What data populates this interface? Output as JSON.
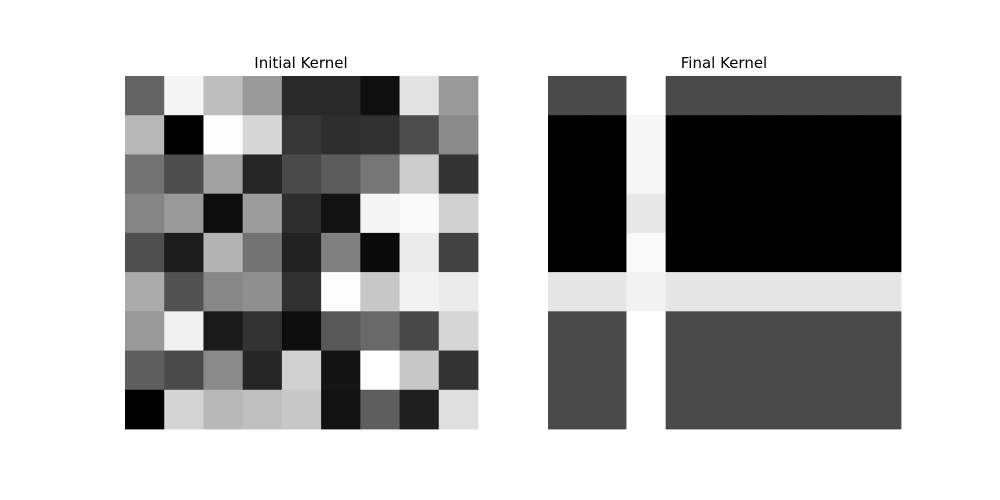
{
  "chart_data": [
    {
      "type": "heatmap",
      "title": "Initial Kernel",
      "colormap": "gray",
      "grid": false,
      "axes_visible": false,
      "rows": 9,
      "cols": 9,
      "values": [
        [
          0.39,
          0.96,
          0.74,
          0.6,
          0.16,
          0.16,
          0.06,
          0.89,
          0.6
        ],
        [
          0.72,
          0.0,
          0.99,
          0.84,
          0.21,
          0.18,
          0.19,
          0.3,
          0.54
        ],
        [
          0.45,
          0.3,
          0.63,
          0.15,
          0.29,
          0.36,
          0.46,
          0.8,
          0.2
        ],
        [
          0.52,
          0.6,
          0.05,
          0.61,
          0.18,
          0.07,
          0.96,
          0.98,
          0.82
        ],
        [
          0.31,
          0.11,
          0.7,
          0.45,
          0.13,
          0.5,
          0.04,
          0.92,
          0.26
        ],
        [
          0.67,
          0.32,
          0.53,
          0.56,
          0.19,
          0.99,
          0.78,
          0.95,
          0.92
        ],
        [
          0.6,
          0.94,
          0.1,
          0.2,
          0.05,
          0.34,
          0.41,
          0.28,
          0.84
        ],
        [
          0.37,
          0.29,
          0.54,
          0.15,
          0.82,
          0.08,
          1.0,
          0.78,
          0.2
        ],
        [
          0.0,
          0.83,
          0.72,
          0.75,
          0.78,
          0.07,
          0.37,
          0.12,
          0.87
        ]
      ]
    },
    {
      "type": "heatmap",
      "title": "Final Kernel",
      "colormap": "gray",
      "grid": false,
      "axes_visible": false,
      "rows": 9,
      "cols": 9,
      "values": [
        [
          0.29,
          0.29,
          1.0,
          0.29,
          0.29,
          0.29,
          0.29,
          0.29,
          0.29
        ],
        [
          0.0,
          0.0,
          0.97,
          0.0,
          0.0,
          0.0,
          0.0,
          0.0,
          0.0
        ],
        [
          0.0,
          0.0,
          0.97,
          0.0,
          0.0,
          0.0,
          0.0,
          0.0,
          0.0
        ],
        [
          0.0,
          0.0,
          0.91,
          0.0,
          0.0,
          0.0,
          0.0,
          0.0,
          0.0
        ],
        [
          0.0,
          0.0,
          0.98,
          0.0,
          0.0,
          0.0,
          0.0,
          0.0,
          0.0
        ],
        [
          0.9,
          0.9,
          0.95,
          0.9,
          0.9,
          0.9,
          0.9,
          0.9,
          0.9
        ],
        [
          0.29,
          0.29,
          1.0,
          0.29,
          0.29,
          0.29,
          0.29,
          0.29,
          0.29
        ],
        [
          0.29,
          0.29,
          1.0,
          0.29,
          0.29,
          0.29,
          0.29,
          0.29,
          0.29
        ],
        [
          0.29,
          0.29,
          1.0,
          0.29,
          0.29,
          0.29,
          0.29,
          0.29,
          0.29
        ]
      ]
    }
  ]
}
